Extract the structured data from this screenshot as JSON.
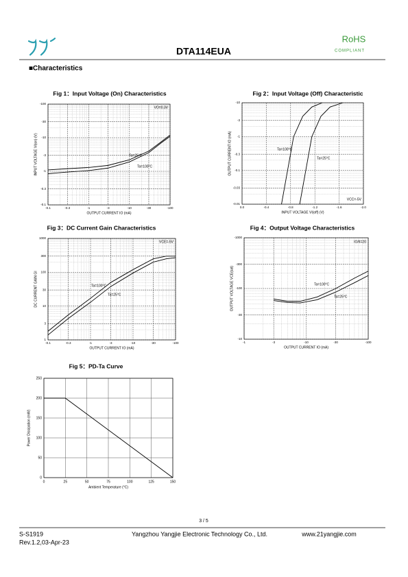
{
  "header": {
    "part_number": "DTA114EUA",
    "rohs": "RoHS",
    "compliant": "COMPLIANT"
  },
  "section": "■Characteristics",
  "chart_data": [
    {
      "type": "line",
      "title": "Fig 1：Input Voltage (On) Characteristics",
      "xlabel": "OUTPUT CURRENT  IO  (mA)",
      "ylabel": "INPUT VOLTAGE  VI(on)  (V)",
      "xscale": "log",
      "yscale": "log",
      "grid": true,
      "xlim": [
        -0.1,
        -100
      ],
      "ylim": [
        -0.1,
        -100
      ],
      "xticks": [
        -0.1,
        -0.3,
        -1,
        -3,
        -10,
        -30,
        -100
      ],
      "yticks": [
        -100,
        -30,
        -10,
        -3,
        -1,
        -0.3,
        -0.1
      ],
      "annotations": [
        "VO=0.3V"
      ],
      "series": [
        {
          "name": "Ta=25°C",
          "color": "#000000",
          "x": [
            -0.1,
            -0.3,
            -1,
            -3,
            -10,
            -30,
            -60,
            -100
          ],
          "values": [
            -1.1,
            -1.2,
            -1.3,
            -1.5,
            -2.2,
            -4,
            -7.5,
            -12
          ]
        },
        {
          "name": "Ta=100°C",
          "color": "#000000",
          "x": [
            -0.1,
            -0.3,
            -1,
            -3,
            -10,
            -30,
            -60,
            -100
          ],
          "values": [
            -0.85,
            -0.95,
            -1.05,
            -1.25,
            -1.9,
            -3.6,
            -7,
            -11
          ]
        }
      ]
    },
    {
      "type": "line",
      "title": "Fig 2：Input Voltage (Off) Characteristic",
      "xlabel": "INPUT VOLTAGE  VI(off)  (V)",
      "ylabel": "OUTPUT CURRENT  IO  (mA)",
      "xscale": "linear",
      "yscale": "log",
      "grid": true,
      "xlim": [
        0,
        -2
      ],
      "ylim": [
        -0.01,
        -10
      ],
      "xticks": [
        {
          "value": 0,
          "label": "0.0"
        },
        -0.4,
        -0.8,
        -1.2,
        -1.6,
        {
          "value": -2,
          "label": "-2.0"
        }
      ],
      "yticks": [
        -10,
        -3,
        -1,
        -0.3,
        -0.1,
        -0.03,
        -0.01
      ],
      "annotations": [
        "VCC=-5V"
      ],
      "series": [
        {
          "name": "Ta=100°C",
          "color": "#000000",
          "x": [
            -0.65,
            -0.75,
            -0.85,
            -1.0,
            -1.15,
            -1.32
          ],
          "values": [
            -0.01,
            -0.1,
            -1,
            -4,
            -7.5,
            -10
          ]
        },
        {
          "name": "Ta=25°C",
          "color": "#000000",
          "x": [
            -0.95,
            -1.05,
            -1.15,
            -1.3,
            -1.45,
            -1.66
          ],
          "values": [
            -0.01,
            -0.1,
            -1,
            -4,
            -7.5,
            -10
          ]
        }
      ]
    },
    {
      "type": "line",
      "title": "Fig 3：DC Current Gain Characteristics",
      "xlabel": "OUTPUT CURRENT  IO  (mA)",
      "ylabel": "DC CURRENT GAIN  GI",
      "xscale": "log",
      "yscale": "log",
      "grid": true,
      "xlim": [
        -0.1,
        -100
      ],
      "ylim": [
        1,
        1000
      ],
      "xticks": [
        -0.1,
        -0.3,
        -1,
        -3,
        -10,
        -30,
        -100
      ],
      "yticks": [
        1000,
        300,
        100,
        30,
        10,
        3,
        1
      ],
      "annotations": [
        "VCE=-5V"
      ],
      "series": [
        {
          "name": "Ta=100°C",
          "color": "#000000",
          "x": [
            -0.1,
            -0.3,
            -1,
            -3,
            -10,
            -30,
            -60,
            -100
          ],
          "values": [
            1.8,
            5.5,
            17,
            50,
            120,
            250,
            300,
            300
          ]
        },
        {
          "name": "Ta=25°C",
          "color": "#000000",
          "x": [
            -0.1,
            -0.3,
            -1,
            -3,
            -10,
            -30,
            -60,
            -100
          ],
          "values": [
            1.4,
            4.3,
            13,
            38,
            95,
            200,
            250,
            270
          ]
        }
      ]
    },
    {
      "type": "line",
      "title": "Fig 4：Output Voltage Characteristics",
      "xlabel": "OUTPUT CURRENT  IO  (mA)",
      "ylabel": "OUTPUT VOLTAGE  VCE(sat)",
      "xscale": "log",
      "yscale": "log",
      "grid": true,
      "xlim": [
        -1,
        -100
      ],
      "ylim": [
        -10,
        -1000
      ],
      "xticks": [
        -1,
        -3,
        -10,
        -30,
        -100
      ],
      "yticks": [
        -1000,
        -300,
        -100,
        -30,
        -10
      ],
      "annotations": [
        "IO/II=20"
      ],
      "series": [
        {
          "name": "Ta=100°C",
          "color": "#000000",
          "x": [
            -3,
            -5,
            -8,
            -15,
            -30,
            -60,
            -100
          ],
          "values": [
            -62,
            -56,
            -56,
            -68,
            -100,
            -160,
            -220
          ]
        },
        {
          "name": "Ta=25°C",
          "color": "#000000",
          "x": [
            -3,
            -5,
            -8,
            -15,
            -30,
            -60,
            -100
          ],
          "values": [
            -58,
            -53,
            -52,
            -60,
            -85,
            -130,
            -180
          ]
        }
      ]
    },
    {
      "type": "line",
      "title": "Fig 5：PD-Ta Curve",
      "xlabel": "Ambient Temperature (°C)",
      "ylabel": "Power Dissipation  (mW)",
      "xscale": "linear",
      "yscale": "linear",
      "grid": true,
      "xlim": [
        0,
        150
      ],
      "ylim": [
        0,
        250
      ],
      "xticks": [
        0,
        25,
        50,
        75,
        100,
        125,
        150
      ],
      "yticks": [
        0,
        50,
        100,
        150,
        200,
        250
      ],
      "series": [
        {
          "color": "#000000",
          "x": [
            0,
            25,
            150
          ],
          "values": [
            200,
            200,
            0
          ]
        }
      ]
    }
  ],
  "page_number": "3 / 5",
  "footer": {
    "doc_id": "S-S1919",
    "revision": "Rev.1.2,03-Apr-23",
    "company": "Yangzhou Yangjie Electronic Technology Co., Ltd.",
    "website": "www.21yangjie.com"
  }
}
